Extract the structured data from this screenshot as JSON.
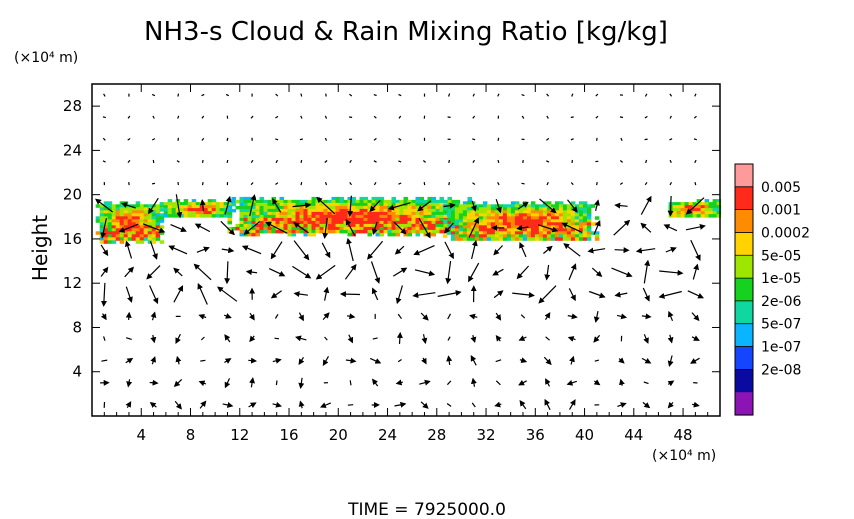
{
  "chart_data": {
    "type": "heatmap",
    "title": "NH3-s Cloud & Rain Mixing Ratio [kg/kg]",
    "ylabel": "Height",
    "y_unit": "(×10⁴ m)",
    "x_unit": "(×10⁴ m)",
    "footer": "TIME = 7925000.0",
    "xlim": [
      0,
      51
    ],
    "ylim": [
      0,
      30
    ],
    "x_ticks": [
      "4",
      "8",
      "12",
      "16",
      "20",
      "24",
      "28",
      "32",
      "36",
      "40",
      "44",
      "48"
    ],
    "y_ticks": [
      "4",
      "8",
      "12",
      "16",
      "20",
      "24",
      "28"
    ],
    "x_tick_values": [
      4,
      8,
      12,
      16,
      20,
      24,
      28,
      32,
      36,
      40,
      44,
      48
    ],
    "y_tick_values": [
      4,
      8,
      12,
      16,
      20,
      24,
      28
    ],
    "colorbar": {
      "labels": [
        "0.005",
        "0.001",
        "0.0002",
        "5e-05",
        "1e-05",
        "2e-06",
        "5e-07",
        "1e-07",
        "2e-08"
      ],
      "colors": [
        "#ff9a9a",
        "#ff2a1a",
        "#ff8c00",
        "#ffd200",
        "#9ee600",
        "#14d21e",
        "#10d6a0",
        "#0ab4ff",
        "#1446ff",
        "#0a0aa0",
        "#8c14b4"
      ]
    },
    "cloud_regions": [
      {
        "x": [
          0.3,
          5.5
        ],
        "y": [
          15.8,
          19.4
        ]
      },
      {
        "x": [
          5.5,
          11.5
        ],
        "y": [
          18.0,
          19.6
        ]
      },
      {
        "x": [
          11.0,
          30.5
        ],
        "y": [
          16.5,
          19.8
        ]
      },
      {
        "x": [
          28.5,
          41.0
        ],
        "y": [
          16.0,
          19.4
        ]
      },
      {
        "x": [
          46.5,
          51.0
        ],
        "y": [
          18.0,
          19.6
        ]
      }
    ],
    "wind_vectors": "schematic field of arrows on a regular grid"
  }
}
